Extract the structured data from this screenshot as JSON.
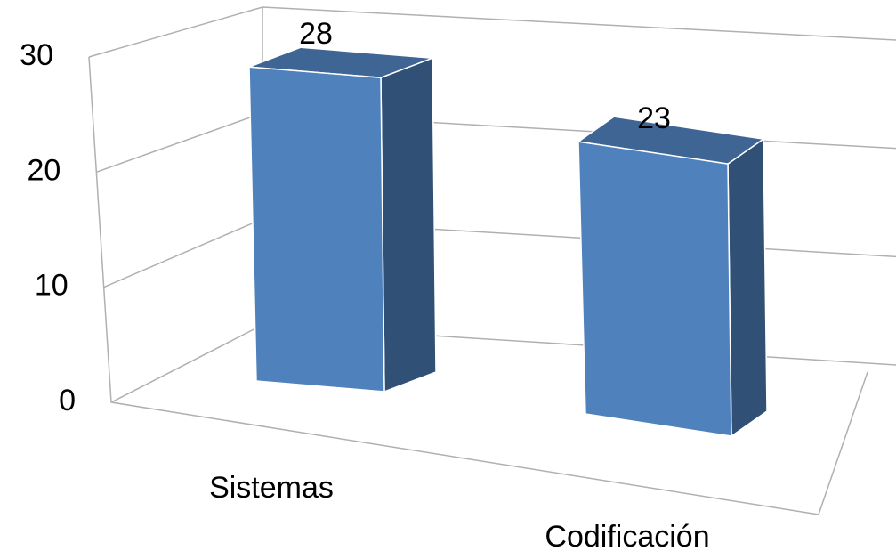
{
  "chart_data": {
    "type": "bar3d",
    "categories": [
      "Sistemas",
      "Codificación"
    ],
    "values": [
      28,
      23
    ],
    "color": "#4f81bd",
    "ylim": [
      0,
      30
    ],
    "yticks": [
      0,
      10,
      20,
      30
    ],
    "grid": true
  }
}
